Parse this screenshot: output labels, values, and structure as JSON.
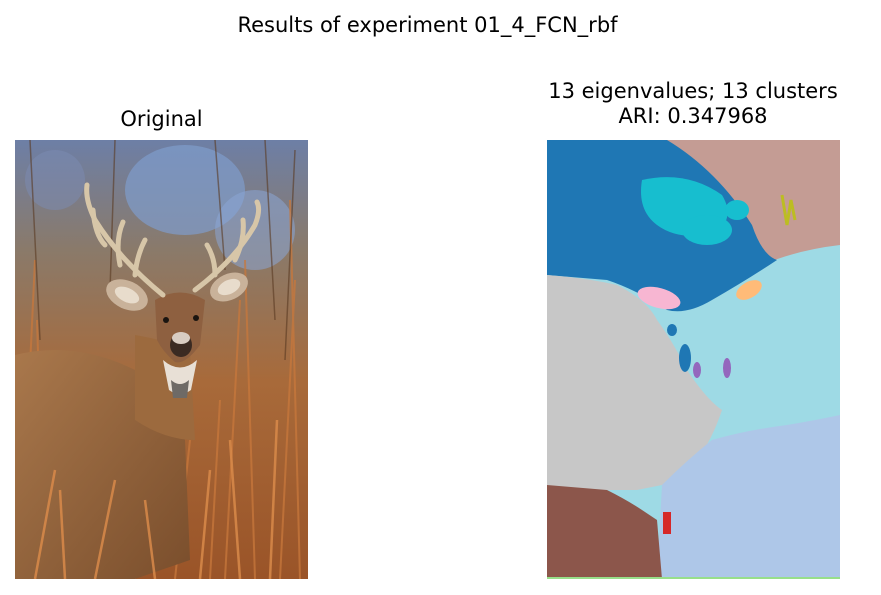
{
  "figure": {
    "suptitle": "Results of experiment 01_4_FCN_rbf"
  },
  "left_panel": {
    "title": "Original",
    "image_description_icon": "deer-photo"
  },
  "right_panel": {
    "title_line1": "13 eigenvalues; 13 clusters",
    "title_line2": "ARI: 0.347968",
    "image_description_icon": "segmentation-map"
  },
  "colors": {
    "cluster_blue": "#1f77b4",
    "cluster_cyan": "#17becf",
    "cluster_light_cyan": "#9edae5",
    "cluster_rosy": "#c49c94",
    "cluster_gray": "#c7c7c7",
    "cluster_brown": "#8c564b",
    "cluster_light_blue": "#aec7e8",
    "cluster_pink": "#f7b6d2",
    "cluster_orange": "#ffbb78",
    "cluster_purple": "#9467bd",
    "cluster_red": "#d62728",
    "cluster_yellow_green": "#bcbd22",
    "cluster_green": "#98df8a"
  }
}
